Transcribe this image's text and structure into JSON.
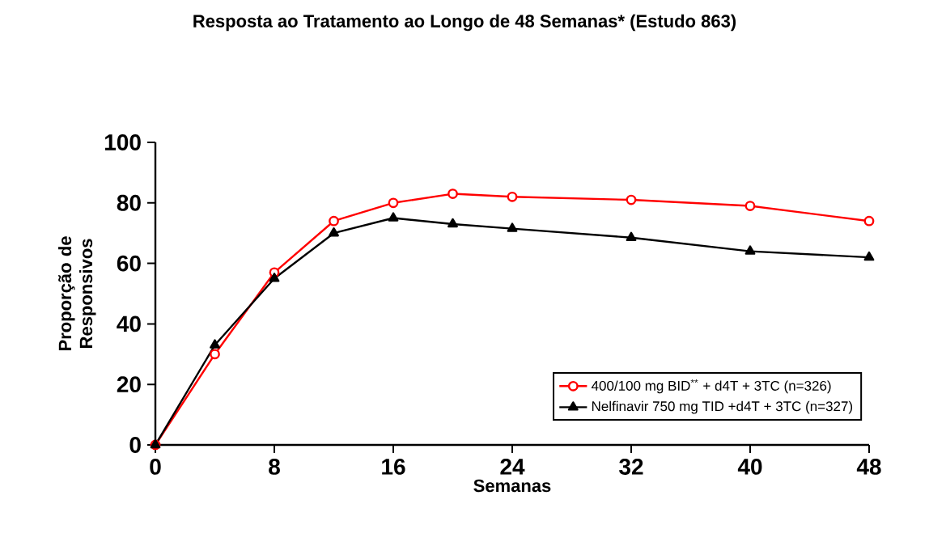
{
  "chart_data": {
    "type": "line",
    "title": "Resposta ao Tratamento ao Longo de 48 Semanas* (Estudo 863)",
    "xlabel": "Semanas",
    "ylabel": "Proporção de Responsivos",
    "x": [
      0,
      4,
      8,
      12,
      16,
      20,
      24,
      32,
      40,
      48
    ],
    "series": [
      {
        "name": "400/100 mg BID$^{**}$ + d4T + 3TC (n=326)",
        "color": "#ff0000",
        "marker": "circle",
        "values": [
          0,
          30,
          57,
          74,
          80,
          83,
          82,
          81,
          79,
          74
        ]
      },
      {
        "name": "Nelfinavir 750 mg TID +d4T + 3TC (n=327)",
        "color": "#000000",
        "marker": "triangle",
        "values": [
          0,
          33,
          55,
          70,
          75,
          73,
          71.5,
          68.5,
          64,
          62
        ]
      }
    ],
    "xlim": [
      0,
      48
    ],
    "ylim": [
      0,
      100
    ],
    "xticks": [
      0,
      8,
      16,
      24,
      32,
      40,
      48
    ],
    "yticks": [
      0,
      20,
      40,
      60,
      80,
      100
    ],
    "legend": "bottom right",
    "grid": false,
    "line_style": "solid"
  }
}
